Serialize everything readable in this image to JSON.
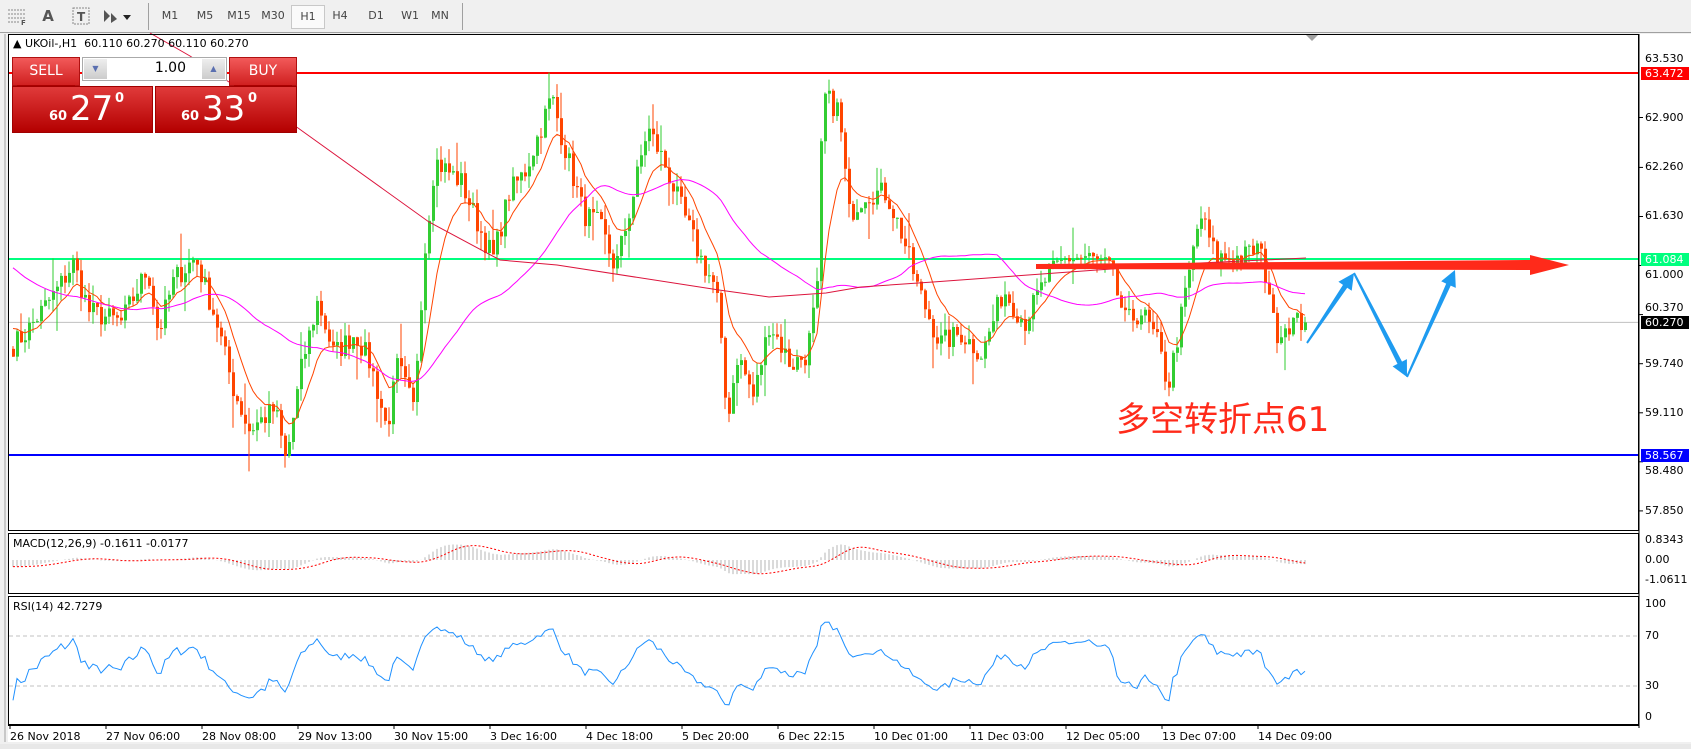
{
  "toolbar": {
    "icons": [
      "grid-f-icon",
      "text-a-icon",
      "text-label-icon",
      "shapes-icon"
    ],
    "timeframes": [
      "M1",
      "M5",
      "M15",
      "M30",
      "H1",
      "H4",
      "D1",
      "W1",
      "MN"
    ],
    "active_timeframe": "H1"
  },
  "chart": {
    "header": "UKOil-,H1  60.110 60.270 60.110 60.270",
    "symbol": "UKOil-",
    "period": "H1",
    "ohlc": [
      "60.110",
      "60.270",
      "60.110",
      "60.270"
    ],
    "price_ticks": [
      "63.530",
      "62.900",
      "62.260",
      "61.630",
      "61.000",
      "60.370",
      "59.740",
      "59.110",
      "58.480",
      "57.850"
    ],
    "levels": [
      {
        "label": "63.472",
        "price": 63.472,
        "color": "#ff0000"
      },
      {
        "label": "61.084",
        "price": 61.084,
        "color": "#00ff7f"
      },
      {
        "label": "60.270",
        "price": 60.27,
        "color": "#000000",
        "line_color": "#c0c0c0"
      },
      {
        "label": "58.567",
        "price": 58.567,
        "color": "#0000ff"
      }
    ],
    "time_labels": [
      "26 Nov 2018",
      "27 Nov 06:00",
      "28 Nov 08:00",
      "29 Nov 13:00",
      "30 Nov 15:00",
      "3 Dec 16:00",
      "4 Dec 18:00",
      "5 Dec 20:00",
      "6 Dec 22:15",
      "10 Dec 01:00",
      "11 Dec 03:00",
      "12 Dec 05:00",
      "13 Dec 07:00",
      "14 Dec 09:00"
    ],
    "colors": {
      "bull": "#32cd32",
      "bear": "#ff4500",
      "ma_fast": "#ff4500",
      "ma_mid": "#ff00ff",
      "ma_slow": "#dc143c"
    },
    "annotation": "多空转折点61",
    "annotation_color": "#ff2a1a",
    "arrow_color": "#ff2a1a",
    "zigzag_color": "#1e9bf0"
  },
  "order_panel": {
    "sell_label": "SELL",
    "buy_label": "BUY",
    "lot": "1.00",
    "sell_price_prefix": "60",
    "sell_price_main": "27",
    "sell_price_sup": "0",
    "buy_price_prefix": "60",
    "buy_price_main": "33",
    "buy_price_sup": "0"
  },
  "macd": {
    "label": "MACD(12,26,9) -0.1611 -0.0177",
    "ticks": [
      "0.8343",
      "0.00",
      "-1.0611"
    ]
  },
  "rsi": {
    "label": "RSI(14) 42.7279",
    "ticks": [
      "100",
      "70",
      "30",
      "0"
    ],
    "levels": [
      70,
      30
    ]
  }
}
